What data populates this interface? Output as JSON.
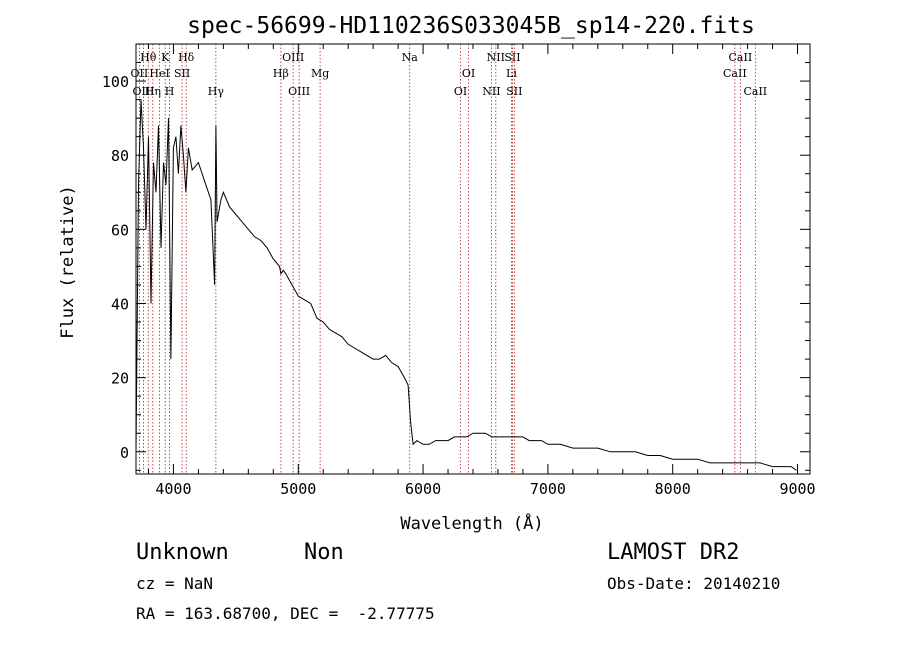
{
  "chart_data": {
    "type": "line",
    "title": "spec-56699-HD110236S033045B_sp14-220.fits",
    "xlabel": "Wavelength (Å)",
    "ylabel": "Flux (relative)",
    "xlim": [
      3700,
      9100
    ],
    "ylim": [
      -6,
      110
    ],
    "x_ticks": [
      4000,
      5000,
      6000,
      7000,
      8000,
      9000
    ],
    "y_ticks": [
      0,
      20,
      40,
      60,
      80,
      100
    ],
    "series": [
      {
        "name": "flux",
        "x": [
          3700,
          3720,
          3740,
          3760,
          3780,
          3800,
          3820,
          3840,
          3860,
          3880,
          3900,
          3920,
          3940,
          3960,
          3980,
          4000,
          4020,
          4040,
          4060,
          4080,
          4100,
          4120,
          4150,
          4200,
          4250,
          4300,
          4330,
          4340,
          4350,
          4380,
          4400,
          4450,
          4500,
          4550,
          4600,
          4650,
          4700,
          4750,
          4800,
          4850,
          4861,
          4880,
          4900,
          4950,
          5000,
          5050,
          5100,
          5150,
          5200,
          5250,
          5300,
          5350,
          5400,
          5450,
          5500,
          5550,
          5600,
          5650,
          5700,
          5750,
          5800,
          5850,
          5880,
          5900,
          5920,
          5950,
          6000,
          6050,
          6100,
          6150,
          6200,
          6250,
          6300,
          6350,
          6400,
          6450,
          6500,
          6550,
          6600,
          6650,
          6700,
          6750,
          6800,
          6850,
          6900,
          6950,
          7000,
          7100,
          7200,
          7300,
          7400,
          7500,
          7600,
          7700,
          7800,
          7900,
          8000,
          8100,
          8200,
          8300,
          8400,
          8500,
          8600,
          8700,
          8800,
          8900,
          8950,
          8990
        ],
        "y": [
          0,
          72,
          95,
          82,
          60,
          85,
          40,
          78,
          70,
          88,
          55,
          78,
          72,
          90,
          25,
          82,
          85,
          75,
          88,
          80,
          70,
          82,
          76,
          78,
          73,
          68,
          45,
          88,
          62,
          68,
          70,
          66,
          64,
          62,
          60,
          58,
          57,
          55,
          52,
          50,
          48,
          49,
          48,
          45,
          42,
          41,
          40,
          36,
          35,
          33,
          32,
          31,
          29,
          28,
          27,
          26,
          25,
          25,
          26,
          24,
          23,
          20,
          18,
          8,
          2,
          3,
          2,
          2,
          3,
          3,
          3,
          4,
          4,
          4,
          5,
          5,
          5,
          4,
          4,
          4,
          4,
          4,
          4,
          3,
          3,
          3,
          2,
          2,
          1,
          1,
          1,
          0,
          0,
          0,
          -1,
          -1,
          -2,
          -2,
          -2,
          -3,
          -3,
          -3,
          -3,
          -3,
          -4,
          -4,
          -4,
          -5
        ]
      }
    ],
    "line_marks": [
      {
        "label": "Hθ",
        "x": 3798,
        "row": 1
      },
      {
        "label": "K",
        "x": 3934,
        "row": 1
      },
      {
        "label": "Hδ",
        "x": 4102,
        "row": 1
      },
      {
        "label": "OII",
        "x": 3727,
        "row": 2
      },
      {
        "label": "HeI",
        "x": 3889,
        "row": 2
      },
      {
        "label": "SII",
        "x": 4069,
        "row": 2
      },
      {
        "label": "OIII",
        "x": 3760,
        "row": 3
      },
      {
        "label": "Hη",
        "x": 3835,
        "row": 3
      },
      {
        "label": "H",
        "x": 3969,
        "row": 3
      },
      {
        "label": "Hγ",
        "x": 4340,
        "row": 3
      },
      {
        "label": "OIII",
        "x": 4959,
        "row": 1
      },
      {
        "label": "Hβ",
        "x": 4861,
        "row": 2
      },
      {
        "label": "Mg",
        "x": 5175,
        "row": 2
      },
      {
        "label": "OIII",
        "x": 5007,
        "row": 3
      },
      {
        "label": "Na",
        "x": 5893,
        "row": 1
      },
      {
        "label": "OI",
        "x": 6364,
        "row": 2
      },
      {
        "label": "OI",
        "x": 6300,
        "row": 3
      },
      {
        "label": "NII",
        "x": 6583,
        "row": 1
      },
      {
        "label": "SII",
        "x": 6716,
        "row": 1
      },
      {
        "label": "Li",
        "x": 6708,
        "row": 2
      },
      {
        "label": "NII",
        "x": 6548,
        "row": 3
      },
      {
        "label": "SII",
        "x": 6731,
        "row": 3
      },
      {
        "label": "CaII",
        "x": 8542,
        "row": 1
      },
      {
        "label": "CaII",
        "x": 8498,
        "row": 2
      },
      {
        "label": "CaII",
        "x": 8662,
        "row": 3
      }
    ]
  },
  "info": {
    "object_type": "Unknown",
    "object_class": "Non",
    "survey": "LAMOST DR2",
    "redshift": "cz = NaN",
    "obs_date": "Obs-Date: 20140210",
    "coords": "RA = 163.68700, DEC =  -2.77775"
  }
}
